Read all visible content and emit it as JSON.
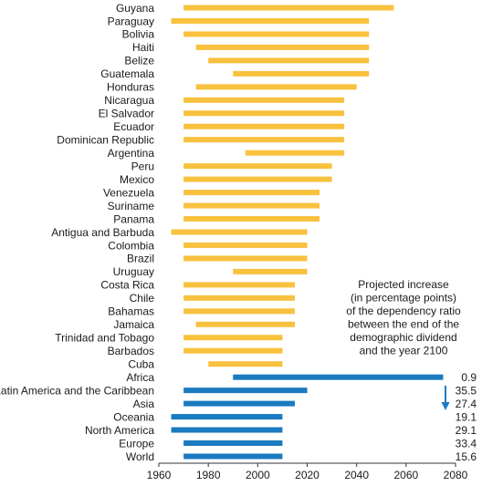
{
  "chart_data": {
    "type": "bar",
    "subtype": "floating-horizontal-range",
    "xlim": [
      1960,
      2080
    ],
    "x_ticks": [
      "1960",
      "1980",
      "2000",
      "2020",
      "2040",
      "2060",
      "2080"
    ],
    "colors": {
      "countries": "#F8C13E",
      "regions": "#1B7AC0",
      "arrow": "#1B7AC0"
    },
    "annotation": "Projected increase (in percentage points) of the dependency ratio between the end of the demographic dividend and the year 2100",
    "annotation_lines": [
      "Projected increase",
      "(in percentage points)",
      "of the dependency ratio",
      "between the end of the",
      "demographic dividend",
      "and the year 2100"
    ],
    "series": [
      {
        "group": "countries",
        "categories": [
          "Guyana",
          "Paraguay",
          "Bolivia",
          "Haiti",
          "Belize",
          "Guatemala",
          "Honduras",
          "Nicaragua",
          "El Salvador",
          "Ecuador",
          "Dominican Republic",
          "Argentina",
          "Peru",
          "Mexico",
          "Venezuela",
          "Suriname",
          "Panama",
          "Antigua and Barbuda",
          "Colombia",
          "Brazil",
          "Uruguay",
          "Costa Rica",
          "Chile",
          "Bahamas",
          "Jamaica",
          "Trinidad and Tobago",
          "Barbados",
          "Cuba"
        ],
        "start": [
          1970,
          1965,
          1970,
          1975,
          1980,
          1990,
          1975,
          1970,
          1970,
          1970,
          1970,
          1995,
          1970,
          1970,
          1970,
          1970,
          1970,
          1965,
          1970,
          1970,
          1990,
          1970,
          1970,
          1970,
          1975,
          1970,
          1970,
          1980
        ],
        "end": [
          2055,
          2045,
          2045,
          2045,
          2045,
          2045,
          2040,
          2035,
          2035,
          2035,
          2035,
          2035,
          2030,
          2030,
          2025,
          2025,
          2025,
          2020,
          2020,
          2020,
          2020,
          2015,
          2015,
          2015,
          2015,
          2010,
          2010,
          2010
        ]
      },
      {
        "group": "regions",
        "categories": [
          "Africa",
          "Latin America and the Caribbean",
          "Asia",
          "Oceania",
          "North America",
          "Europe",
          "World"
        ],
        "start": [
          1990,
          1970,
          1970,
          1965,
          1965,
          1970,
          1970
        ],
        "end": [
          2075,
          2020,
          2015,
          2010,
          2010,
          2010,
          2010
        ],
        "increase": [
          "0.9",
          "35.5",
          "27.4",
          "19.1",
          "29.1",
          "33.4",
          "15.6"
        ]
      }
    ]
  }
}
